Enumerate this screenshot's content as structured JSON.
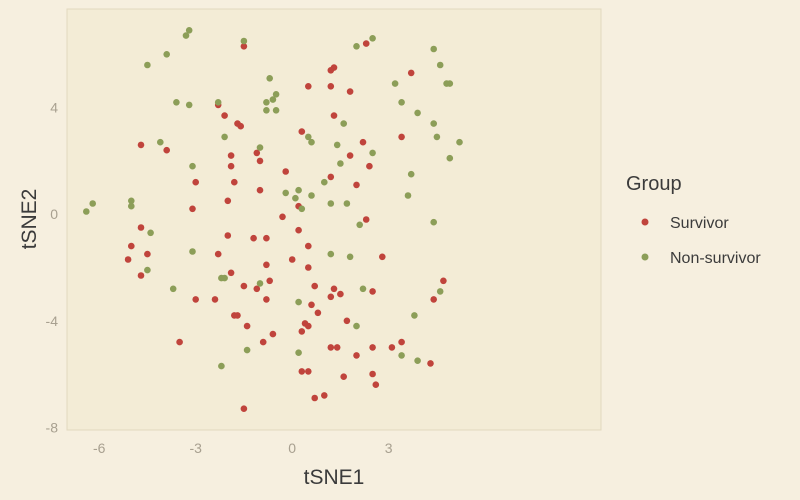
{
  "chart_data": {
    "type": "scatter",
    "title": "",
    "xlabel": "tSNE1",
    "ylabel": "tSNE2",
    "xlim": [
      -7,
      9.6
    ],
    "ylim": [
      -8.1,
      7.7
    ],
    "x_ticks": [
      -6,
      -3,
      0,
      3
    ],
    "y_ticks": [
      -8,
      -4,
      0,
      4
    ],
    "legend": {
      "title": "Group",
      "position": "right"
    },
    "grid": false,
    "series": [
      {
        "name": "Survivor",
        "color": "#c0443c",
        "points": [
          [
            -1.5,
            6.3
          ],
          [
            1.3,
            5.5
          ],
          [
            1.2,
            5.4
          ],
          [
            2.3,
            6.4
          ],
          [
            3.7,
            5.3
          ],
          [
            0.5,
            4.8
          ],
          [
            1.2,
            4.8
          ],
          [
            1.8,
            4.6
          ],
          [
            -2.3,
            4.1
          ],
          [
            -2.1,
            3.7
          ],
          [
            -1.6,
            3.3
          ],
          [
            -1.7,
            3.4
          ],
          [
            1.3,
            3.7
          ],
          [
            0.3,
            3.1
          ],
          [
            3.4,
            2.9
          ],
          [
            -4.7,
            2.6
          ],
          [
            -3.9,
            2.4
          ],
          [
            -1.1,
            2.3
          ],
          [
            -1.0,
            2.0
          ],
          [
            -1.9,
            2.2
          ],
          [
            -1.9,
            1.8
          ],
          [
            2.2,
            2.7
          ],
          [
            1.8,
            2.2
          ],
          [
            2.4,
            1.8
          ],
          [
            -0.2,
            1.6
          ],
          [
            1.2,
            1.4
          ],
          [
            -3.0,
            1.2
          ],
          [
            -1.8,
            1.2
          ],
          [
            2.0,
            1.1
          ],
          [
            -1.0,
            0.9
          ],
          [
            -2.0,
            0.5
          ],
          [
            -3.1,
            0.2
          ],
          [
            0.2,
            0.3
          ],
          [
            -0.3,
            -0.1
          ],
          [
            2.3,
            -0.2
          ],
          [
            -2.0,
            -0.8
          ],
          [
            -1.2,
            -0.9
          ],
          [
            -0.8,
            -0.9
          ],
          [
            0.2,
            -0.6
          ],
          [
            -5.0,
            -1.2
          ],
          [
            -4.7,
            -0.5
          ],
          [
            -4.5,
            -1.5
          ],
          [
            -2.3,
            -1.5
          ],
          [
            0.5,
            -1.2
          ],
          [
            -5.1,
            -1.7
          ],
          [
            -0.8,
            -1.9
          ],
          [
            0.0,
            -1.7
          ],
          [
            0.5,
            -2.0
          ],
          [
            2.8,
            -1.6
          ],
          [
            -4.7,
            -2.3
          ],
          [
            -1.9,
            -2.2
          ],
          [
            -1.5,
            -2.7
          ],
          [
            -0.7,
            -2.5
          ],
          [
            -1.1,
            -2.8
          ],
          [
            0.7,
            -2.7
          ],
          [
            1.3,
            -2.8
          ],
          [
            1.5,
            -3.0
          ],
          [
            1.2,
            -3.1
          ],
          [
            2.5,
            -2.9
          ],
          [
            -3.0,
            -3.2
          ],
          [
            -2.4,
            -3.2
          ],
          [
            -0.8,
            -3.2
          ],
          [
            0.6,
            -3.4
          ],
          [
            0.8,
            -3.7
          ],
          [
            4.7,
            -2.5
          ],
          [
            4.4,
            -3.2
          ],
          [
            -1.8,
            -3.8
          ],
          [
            -1.7,
            -3.8
          ],
          [
            0.4,
            -4.1
          ],
          [
            0.5,
            -4.2
          ],
          [
            1.7,
            -4.0
          ],
          [
            -1.4,
            -4.2
          ],
          [
            -0.6,
            -4.5
          ],
          [
            0.3,
            -4.4
          ],
          [
            -3.5,
            -4.8
          ],
          [
            -0.9,
            -4.8
          ],
          [
            1.2,
            -5.0
          ],
          [
            1.4,
            -5.0
          ],
          [
            2.5,
            -5.0
          ],
          [
            3.1,
            -5.0
          ],
          [
            3.4,
            -4.8
          ],
          [
            2.0,
            -5.3
          ],
          [
            0.3,
            -5.9
          ],
          [
            0.5,
            -5.9
          ],
          [
            4.3,
            -5.6
          ],
          [
            2.5,
            -6.0
          ],
          [
            1.6,
            -6.1
          ],
          [
            2.6,
            -6.4
          ],
          [
            0.7,
            -6.9
          ],
          [
            1.0,
            -6.8
          ],
          [
            -1.5,
            -7.3
          ]
        ]
      },
      {
        "name": "Non-survivor",
        "color": "#8c9e58",
        "points": [
          [
            -3.2,
            6.9
          ],
          [
            -3.3,
            6.7
          ],
          [
            -1.5,
            6.5
          ],
          [
            2.5,
            6.6
          ],
          [
            2.0,
            6.3
          ],
          [
            4.4,
            6.2
          ],
          [
            -3.9,
            6.0
          ],
          [
            -4.5,
            5.6
          ],
          [
            4.6,
            5.6
          ],
          [
            -0.7,
            5.1
          ],
          [
            3.2,
            4.9
          ],
          [
            4.8,
            4.9
          ],
          [
            4.9,
            4.9
          ],
          [
            -0.5,
            4.5
          ],
          [
            -0.8,
            4.2
          ],
          [
            -0.6,
            4.3
          ],
          [
            -2.3,
            4.2
          ],
          [
            -3.6,
            4.2
          ],
          [
            -3.2,
            4.1
          ],
          [
            3.4,
            4.2
          ],
          [
            -0.8,
            3.9
          ],
          [
            -0.5,
            3.9
          ],
          [
            3.9,
            3.8
          ],
          [
            4.4,
            3.4
          ],
          [
            1.6,
            3.4
          ],
          [
            -2.1,
            2.9
          ],
          [
            0.5,
            2.9
          ],
          [
            4.5,
            2.9
          ],
          [
            -4.1,
            2.7
          ],
          [
            5.2,
            2.7
          ],
          [
            -1.0,
            2.5
          ],
          [
            0.6,
            2.7
          ],
          [
            1.4,
            2.6
          ],
          [
            2.5,
            2.3
          ],
          [
            1.5,
            1.9
          ],
          [
            4.9,
            2.1
          ],
          [
            -3.1,
            1.8
          ],
          [
            3.7,
            1.5
          ],
          [
            -0.2,
            0.8
          ],
          [
            0.2,
            0.9
          ],
          [
            1.0,
            1.2
          ],
          [
            0.6,
            0.7
          ],
          [
            0.1,
            0.6
          ],
          [
            3.6,
            0.7
          ],
          [
            1.7,
            0.4
          ],
          [
            0.3,
            0.2
          ],
          [
            1.2,
            0.4
          ],
          [
            -6.2,
            0.4
          ],
          [
            -6.4,
            0.1
          ],
          [
            -5.0,
            0.5
          ],
          [
            -5.0,
            0.3
          ],
          [
            4.4,
            -0.3
          ],
          [
            2.1,
            -0.4
          ],
          [
            -4.4,
            -0.7
          ],
          [
            -3.1,
            -1.4
          ],
          [
            1.2,
            -1.5
          ],
          [
            1.8,
            -1.6
          ],
          [
            -4.5,
            -2.1
          ],
          [
            -2.1,
            -2.4
          ],
          [
            -2.2,
            -2.4
          ],
          [
            -1.0,
            -2.6
          ],
          [
            -3.7,
            -2.8
          ],
          [
            2.2,
            -2.8
          ],
          [
            4.6,
            -2.9
          ],
          [
            0.2,
            -3.3
          ],
          [
            3.8,
            -3.8
          ],
          [
            2.0,
            -4.2
          ],
          [
            -1.4,
            -5.1
          ],
          [
            0.2,
            -5.2
          ],
          [
            3.4,
            -5.3
          ],
          [
            3.9,
            -5.5
          ],
          [
            -2.2,
            -5.7
          ]
        ]
      }
    ]
  }
}
